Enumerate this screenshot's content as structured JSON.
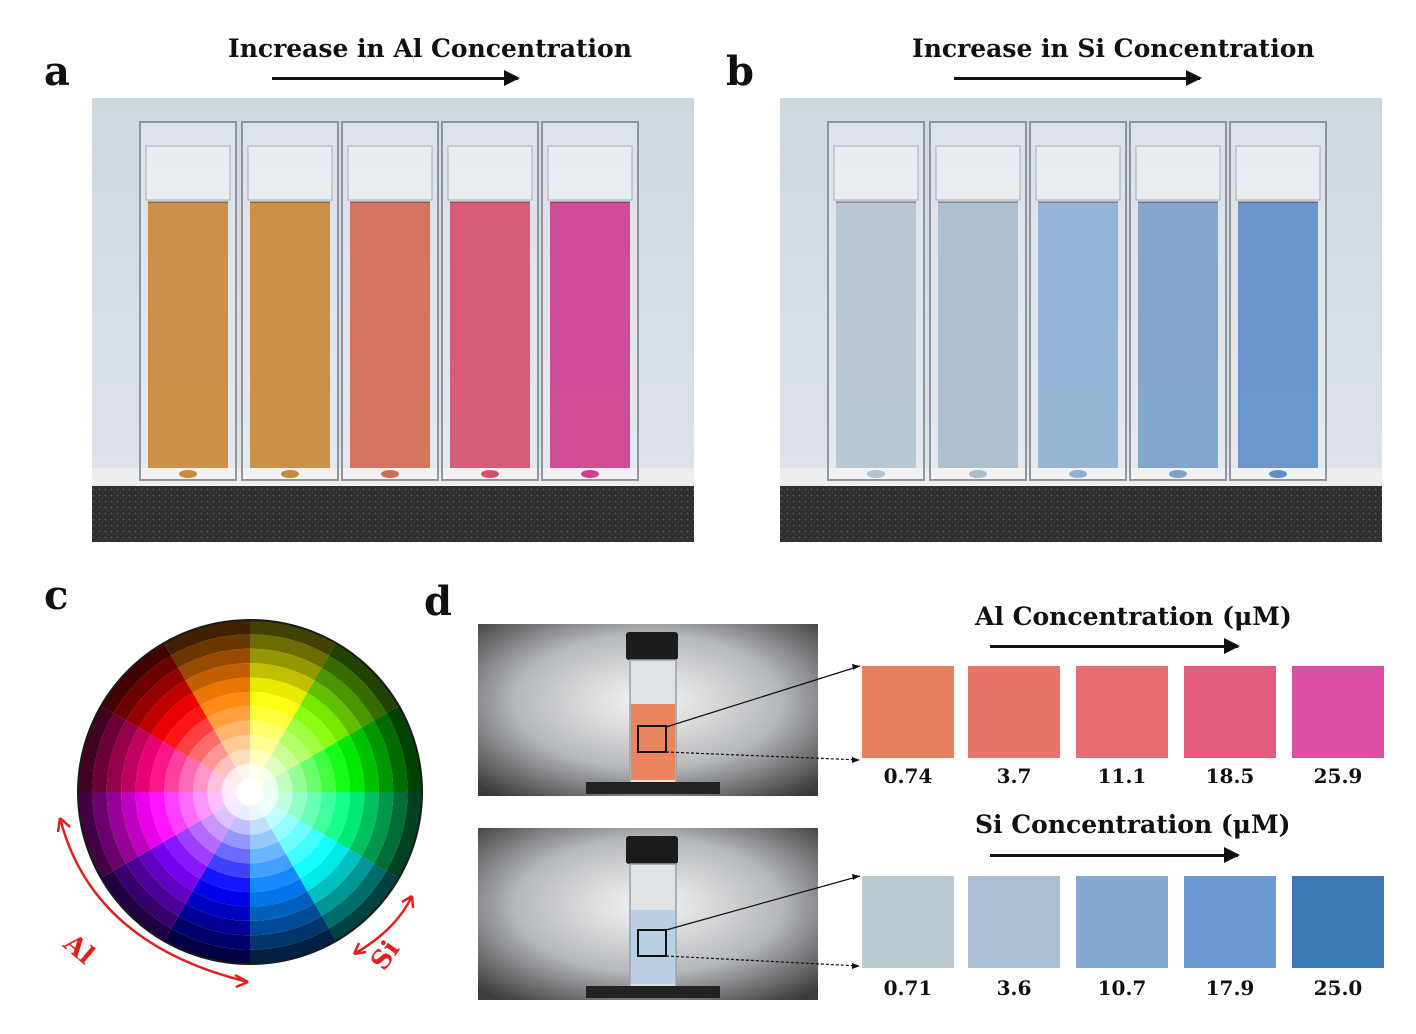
{
  "panel_a": {
    "letter": "a",
    "heading": "Increase in Al Concentration",
    "colors": {
      "liquids": [
        "#c98a3a",
        "#c98937",
        "#d26a54",
        "#d5506c",
        "#cf3f8e"
      ],
      "backdrop": "#c9d2db",
      "base": "#2e2e30"
    }
  },
  "panel_b": {
    "letter": "b",
    "heading": "Increase in Si Concentration",
    "colors": {
      "liquids": [
        "#b5c3cf",
        "#a9bccd",
        "#8fb0d3",
        "#7aa1cc",
        "#5f8fc9"
      ],
      "backdrop": "#c9d2db",
      "base": "#2e2e30"
    }
  },
  "panel_c": {
    "letter": "c",
    "al_label": "Al",
    "si_label": "Si",
    "colors": {
      "arrow": "#e02020"
    }
  },
  "panel_d": {
    "letter": "d",
    "al": {
      "heading": "Al Concentration (μM)",
      "values": [
        "0.74",
        "3.7",
        "11.1",
        "18.5",
        "25.9"
      ],
      "colors": [
        "#e6805e",
        "#e8746a",
        "#e86d72",
        "#e45b7f",
        "#dd4fa4"
      ]
    },
    "si": {
      "heading": "Si Concentration (μM)",
      "values": [
        "0.71",
        "3.6",
        "10.7",
        "17.9",
        "25.0"
      ],
      "colors": [
        "#bccad2",
        "#a9bfd3",
        "#84a9d4",
        "#6d98d0",
        "#3c77b5"
      ]
    }
  }
}
